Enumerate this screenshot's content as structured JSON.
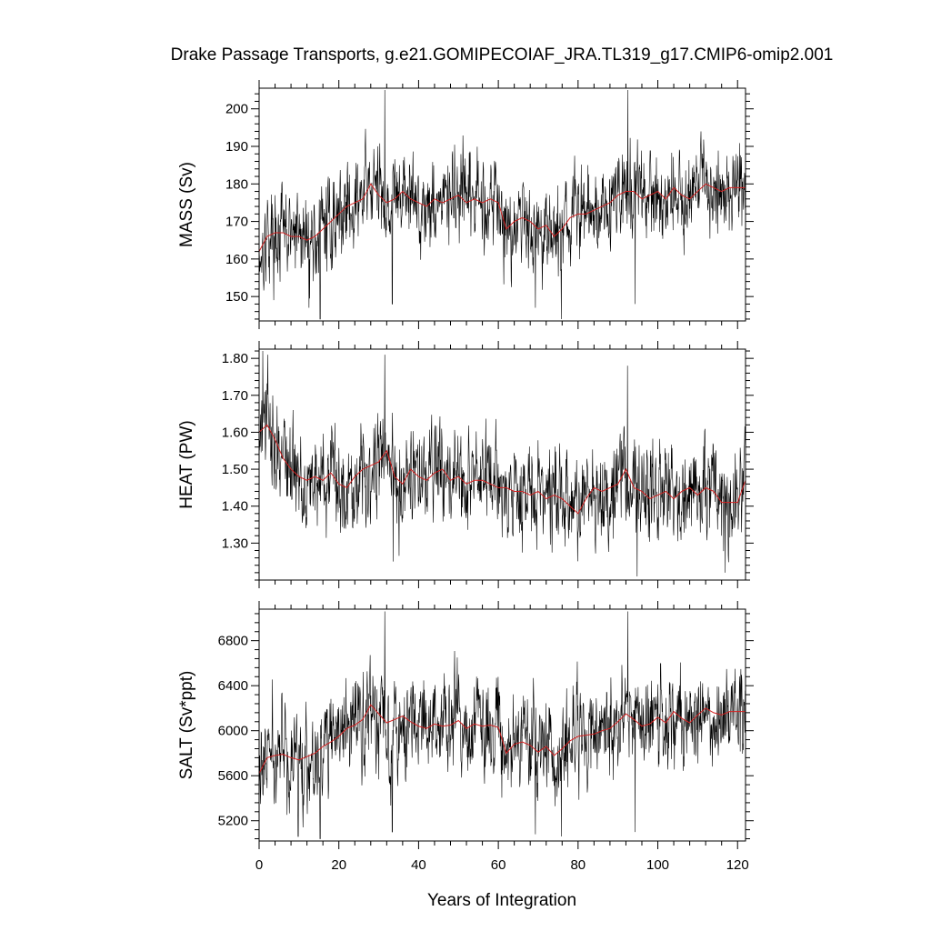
{
  "title": "Drake Passage Transports, g.e21.GOMIPECOIAF_JRA.TL319_g17.CMIP6-omip2.001",
  "chart_data": {
    "type": "line",
    "title": "Drake Passage Transports, g.e21.GOMIPECOIAF_JRA.TL319_g17.CMIP6-omip2.001",
    "xlabel": "Years of Integration",
    "xlim": [
      0,
      122
    ],
    "x_major_ticks": [
      0,
      20,
      40,
      60,
      80,
      100,
      120
    ],
    "x_tick_labels": [
      "0",
      "20",
      "40",
      "60",
      "80",
      "100",
      "120"
    ],
    "x_minor_step": 4,
    "grid": false,
    "series_style": [
      {
        "kind": "monthly raw",
        "color": "#000000"
      },
      {
        "kind": "smoothed mean",
        "color": "#d42020"
      }
    ],
    "panels": [
      {
        "ylabel": "MASS (Sv)",
        "ylim": [
          143.5,
          205.5
        ],
        "y_major_ticks": [
          150,
          160,
          170,
          180,
          190,
          200
        ],
        "y_tick_labels": [
          "150",
          "160",
          "170",
          "180",
          "190",
          "200"
        ],
        "y_minor_step": 2,
        "mean_x": [
          0,
          2,
          4,
          6,
          8,
          10,
          12,
          14,
          16,
          18,
          20,
          22,
          24,
          26,
          28,
          30,
          32,
          34,
          36,
          38,
          40,
          42,
          44,
          46,
          48,
          50,
          52,
          54,
          56,
          58,
          60,
          62,
          64,
          66,
          68,
          70,
          72,
          74,
          76,
          78,
          80,
          82,
          84,
          86,
          88,
          90,
          92,
          94,
          96,
          98,
          100,
          102,
          104,
          106,
          108,
          110,
          112,
          114,
          116,
          118,
          120,
          122
        ],
        "mean_y": [
          162,
          166,
          167,
          167,
          166,
          166,
          165,
          166,
          168,
          170,
          172,
          174,
          175,
          176,
          180,
          177,
          175,
          176,
          178,
          176,
          175,
          174,
          176,
          175,
          176,
          177,
          175,
          176,
          175,
          176,
          175,
          168,
          170,
          171,
          170,
          168,
          169,
          166,
          168,
          171,
          172,
          172,
          173,
          174,
          175,
          177,
          178,
          178,
          176,
          177,
          178,
          176,
          179,
          177,
          176,
          178,
          180,
          179,
          178,
          179,
          179,
          179
        ],
        "noise_amp": 9,
        "spikes": [
          [
            15.3,
            144
          ],
          [
            31.5,
            205
          ],
          [
            92.5,
            205
          ],
          [
            75.8,
            144
          ],
          [
            69.3,
            147
          ],
          [
            12.5,
            147
          ],
          [
            33.4,
            148
          ],
          [
            94.3,
            148
          ]
        ]
      },
      {
        "ylabel": "HEAT (PW)",
        "ylim": [
          1.2,
          1.825
        ],
        "y_major_ticks": [
          1.3,
          1.4,
          1.5,
          1.6,
          1.7,
          1.8
        ],
        "y_tick_labels": [
          "1.30",
          "1.40",
          "1.50",
          "1.60",
          "1.70",
          "1.80"
        ],
        "y_minor_step": 0.02,
        "mean_x": [
          0,
          2,
          4,
          6,
          8,
          10,
          12,
          14,
          16,
          18,
          20,
          22,
          24,
          26,
          28,
          30,
          32,
          34,
          36,
          38,
          40,
          42,
          44,
          46,
          48,
          50,
          52,
          54,
          56,
          58,
          60,
          62,
          64,
          66,
          68,
          70,
          72,
          74,
          76,
          78,
          80,
          82,
          84,
          86,
          88,
          90,
          92,
          94,
          96,
          98,
          100,
          102,
          104,
          106,
          108,
          110,
          112,
          114,
          116,
          118,
          120,
          122
        ],
        "mean_y": [
          1.6,
          1.62,
          1.58,
          1.53,
          1.5,
          1.48,
          1.47,
          1.48,
          1.47,
          1.49,
          1.46,
          1.45,
          1.48,
          1.5,
          1.51,
          1.52,
          1.55,
          1.48,
          1.46,
          1.5,
          1.48,
          1.47,
          1.49,
          1.5,
          1.47,
          1.48,
          1.46,
          1.47,
          1.47,
          1.46,
          1.45,
          1.45,
          1.44,
          1.44,
          1.43,
          1.44,
          1.42,
          1.43,
          1.42,
          1.4,
          1.38,
          1.42,
          1.45,
          1.44,
          1.45,
          1.46,
          1.5,
          1.45,
          1.44,
          1.42,
          1.43,
          1.44,
          1.42,
          1.44,
          1.45,
          1.43,
          1.45,
          1.44,
          1.41,
          1.41,
          1.41,
          1.47
        ],
        "noise_amp": 0.1,
        "spikes": [
          [
            0.9,
            1.82
          ],
          [
            31.5,
            1.81
          ],
          [
            92.4,
            1.78
          ],
          [
            94.8,
            1.21
          ],
          [
            33.6,
            1.25
          ],
          [
            116.9,
            1.22
          ],
          [
            2.2,
            1.81
          ]
        ]
      },
      {
        "ylabel": "SALT (Sv*ppt)",
        "ylim": [
          5020,
          7080
        ],
        "y_major_ticks": [
          5200,
          5600,
          6000,
          6400,
          6800
        ],
        "y_tick_labels": [
          "5200",
          "5600",
          "6000",
          "6400",
          "6800"
        ],
        "y_minor_step": 80,
        "mean_x": [
          0,
          2,
          4,
          6,
          8,
          10,
          12,
          14,
          16,
          18,
          20,
          22,
          24,
          26,
          28,
          30,
          32,
          34,
          36,
          38,
          40,
          42,
          44,
          46,
          48,
          50,
          52,
          54,
          56,
          58,
          60,
          62,
          64,
          66,
          68,
          70,
          72,
          74,
          76,
          78,
          80,
          82,
          84,
          86,
          88,
          90,
          92,
          94,
          96,
          98,
          100,
          102,
          104,
          106,
          108,
          110,
          112,
          114,
          116,
          118,
          120,
          122
        ],
        "mean_y": [
          5620,
          5760,
          5780,
          5790,
          5760,
          5740,
          5770,
          5800,
          5860,
          5900,
          5950,
          6020,
          6050,
          6100,
          6230,
          6150,
          6070,
          6100,
          6130,
          6080,
          6040,
          6020,
          6060,
          6040,
          6050,
          6090,
          6020,
          6060,
          6040,
          6050,
          6030,
          5800,
          5880,
          5900,
          5870,
          5810,
          5860,
          5780,
          5840,
          5910,
          5950,
          5960,
          5970,
          6000,
          6020,
          6080,
          6150,
          6100,
          6040,
          6060,
          6120,
          6070,
          6170,
          6110,
          6070,
          6140,
          6200,
          6160,
          6140,
          6170,
          6170,
          6170
        ],
        "noise_amp": 330,
        "spikes": [
          [
            15.3,
            5040
          ],
          [
            31.5,
            7060
          ],
          [
            92.5,
            7060
          ],
          [
            75.8,
            5060
          ],
          [
            69.3,
            5080
          ],
          [
            33.4,
            5100
          ],
          [
            94.3,
            5100
          ],
          [
            9.8,
            5060
          ]
        ]
      }
    ]
  }
}
